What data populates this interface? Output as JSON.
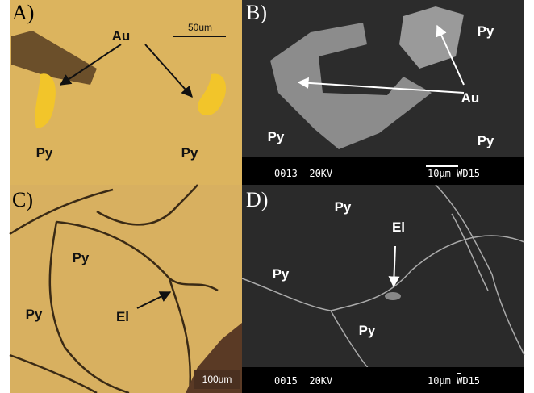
{
  "panels": [
    {
      "label": "A)",
      "annotations": [
        "Au",
        "Py",
        "Py"
      ],
      "scale_bar": "50um"
    },
    {
      "label": "B)",
      "annotations": [
        "Py",
        "Au",
        "Py",
        "Py"
      ],
      "info_left": "0013  20KV",
      "info_right": "10µm WD15"
    },
    {
      "label": "C)",
      "annotations": [
        "Py",
        "Py",
        "El"
      ],
      "scale_bar": "100um"
    },
    {
      "label": "D)",
      "annotations": [
        "Py",
        "El",
        "Py",
        "Py"
      ],
      "info_left": "0015  20KV",
      "info_right": "10µm WD15"
    }
  ]
}
